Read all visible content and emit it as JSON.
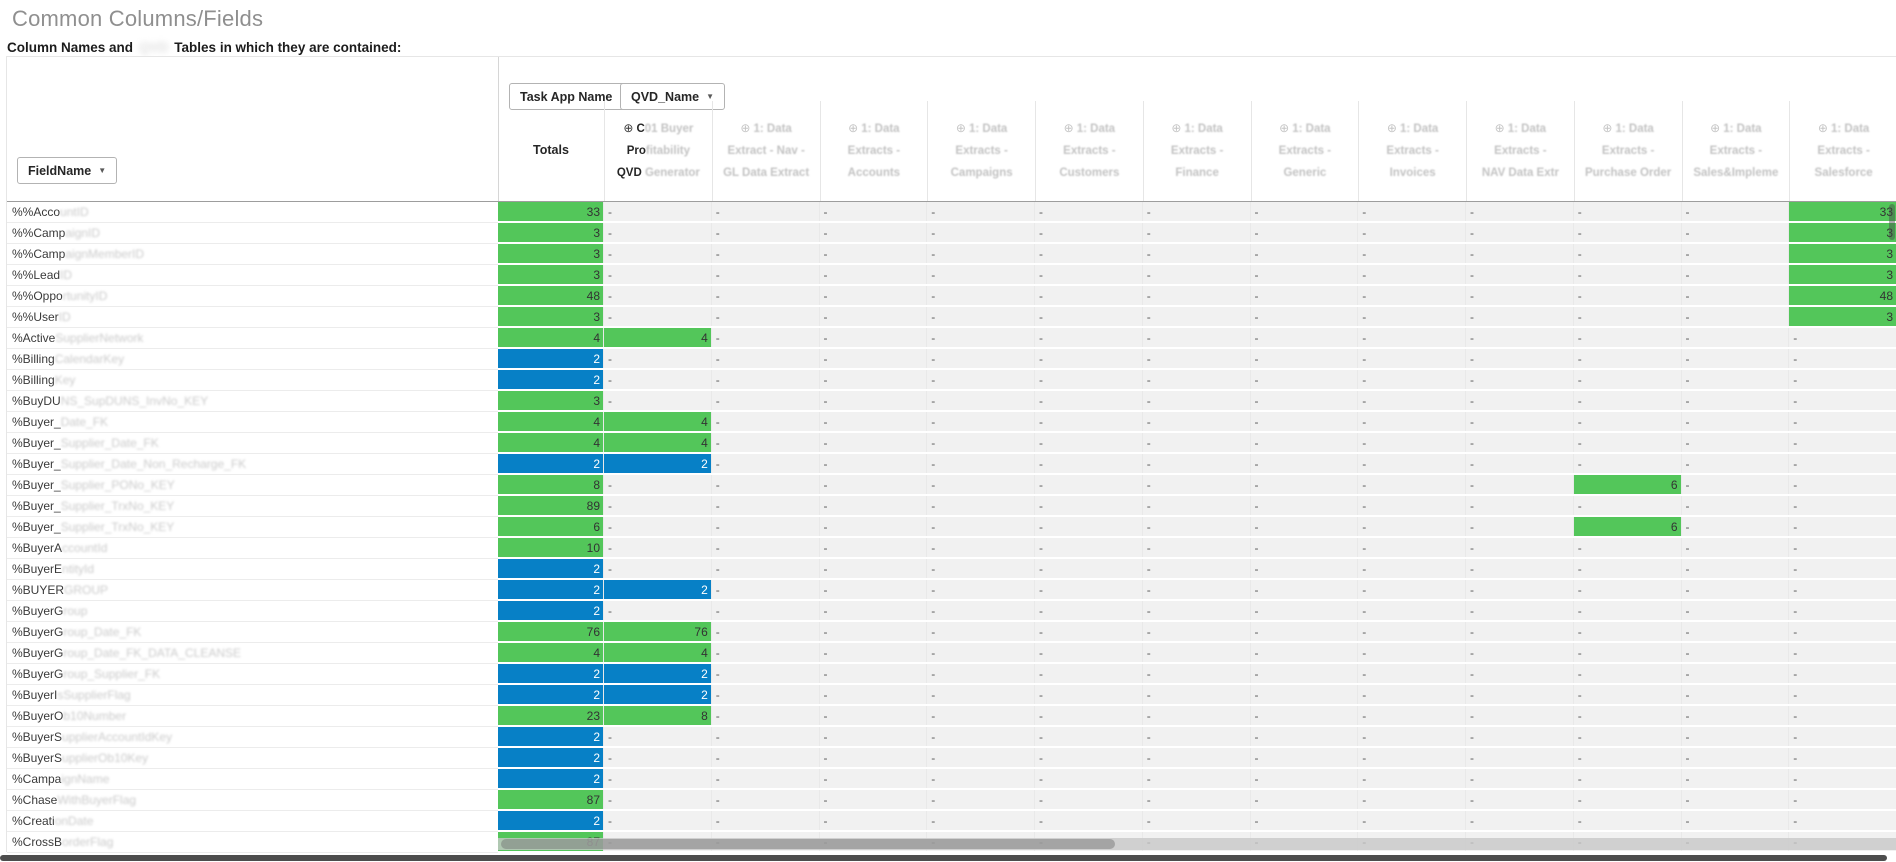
{
  "page": {
    "title": "Common Columns/Fields",
    "subtitle_prefix": "Column Names and",
    "subtitle_redacted": "QVD",
    "subtitle_suffix": "Tables in which they are contained:"
  },
  "toolbar": {
    "column_dim_button": "Task App Name",
    "column_dim2_button": "QVD_Name",
    "row_dim_button": "FieldName",
    "dropdown_arrow": "▼"
  },
  "colors": {
    "green": "#53c65a",
    "blue": "#0780c6"
  },
  "table": {
    "totals_label": "Totals",
    "expand_icon": "⊕",
    "empty_value": "-",
    "columns": [
      {
        "icon_clear": true,
        "lines": [
          [
            [
              "C",
              false
            ],
            [
              "01 Buyer",
              true
            ]
          ],
          [
            [
              "Pro",
              false
            ],
            [
              "fitability",
              true
            ]
          ],
          [
            [
              "QVD",
              false
            ],
            [
              " Generator",
              true
            ]
          ]
        ]
      },
      {
        "icon_clear": false,
        "lines": [
          [
            [
              "1: Data",
              true
            ]
          ],
          [
            [
              "Extract - Nav -",
              true
            ]
          ],
          [
            [
              "GL Data Extract",
              true
            ]
          ]
        ]
      },
      {
        "icon_clear": false,
        "lines": [
          [
            [
              "1: Data",
              true
            ]
          ],
          [
            [
              "Extracts -",
              true
            ]
          ],
          [
            [
              "Accounts",
              true
            ]
          ]
        ]
      },
      {
        "icon_clear": false,
        "lines": [
          [
            [
              "1: Data",
              true
            ]
          ],
          [
            [
              "Extracts -",
              true
            ]
          ],
          [
            [
              "Campaigns",
              true
            ]
          ]
        ]
      },
      {
        "icon_clear": false,
        "lines": [
          [
            [
              "1: Data",
              true
            ]
          ],
          [
            [
              "Extracts -",
              true
            ]
          ],
          [
            [
              "Customers",
              true
            ]
          ]
        ]
      },
      {
        "icon_clear": false,
        "lines": [
          [
            [
              "1: Data",
              true
            ]
          ],
          [
            [
              "Extracts -",
              true
            ]
          ],
          [
            [
              "Finance",
              true
            ]
          ]
        ]
      },
      {
        "icon_clear": false,
        "lines": [
          [
            [
              "1: Data",
              true
            ]
          ],
          [
            [
              "Extracts -",
              true
            ]
          ],
          [
            [
              "Generic",
              true
            ]
          ]
        ]
      },
      {
        "icon_clear": false,
        "lines": [
          [
            [
              "1: Data",
              true
            ]
          ],
          [
            [
              "Extracts -",
              true
            ]
          ],
          [
            [
              "Invoices",
              true
            ]
          ]
        ]
      },
      {
        "icon_clear": false,
        "lines": [
          [
            [
              "1: Data",
              true
            ]
          ],
          [
            [
              "Extracts -",
              true
            ]
          ],
          [
            [
              "NAV Data Extr",
              true
            ]
          ]
        ]
      },
      {
        "icon_clear": false,
        "lines": [
          [
            [
              "1: Data",
              true
            ]
          ],
          [
            [
              "Extracts -",
              true
            ]
          ],
          [
            [
              "Purchase Order",
              true
            ]
          ]
        ]
      },
      {
        "icon_clear": false,
        "lines": [
          [
            [
              "1: Data",
              true
            ]
          ],
          [
            [
              "Extracts -",
              true
            ]
          ],
          [
            [
              "Sales&Impleme",
              true
            ]
          ]
        ]
      },
      {
        "icon_clear": false,
        "lines": [
          [
            [
              "1: Data",
              true
            ]
          ],
          [
            [
              "Extracts -",
              true
            ]
          ],
          [
            [
              "Salesforce",
              true
            ]
          ]
        ]
      }
    ],
    "rows": [
      {
        "label_clear": "%%Acco",
        "label_blur": "untID",
        "total": {
          "v": 33,
          "c": "g"
        },
        "cells": {
          "12": {
            "v": 33,
            "c": "g"
          }
        }
      },
      {
        "label_clear": "%%Camp",
        "label_blur": "aignID",
        "total": {
          "v": 3,
          "c": "g"
        },
        "cells": {
          "12": {
            "v": 3,
            "c": "g"
          }
        }
      },
      {
        "label_clear": "%%Camp",
        "label_blur": "aignMemberID",
        "total": {
          "v": 3,
          "c": "g"
        },
        "cells": {
          "12": {
            "v": 3,
            "c": "g"
          }
        }
      },
      {
        "label_clear": "%%Lead",
        "label_blur": "ID",
        "total": {
          "v": 3,
          "c": "g"
        },
        "cells": {
          "12": {
            "v": 3,
            "c": "g"
          }
        }
      },
      {
        "label_clear": "%%Oppo",
        "label_blur": "rtunityID",
        "total": {
          "v": 48,
          "c": "g"
        },
        "cells": {
          "12": {
            "v": 48,
            "c": "g"
          }
        }
      },
      {
        "label_clear": "%%User",
        "label_blur": "ID",
        "total": {
          "v": 3,
          "c": "g"
        },
        "cells": {
          "12": {
            "v": 3,
            "c": "g"
          }
        }
      },
      {
        "label_clear": "%Active",
        "label_blur": "SupplierNetwork",
        "total": {
          "v": 4,
          "c": "g"
        },
        "cells": {
          "1": {
            "v": 4,
            "c": "g"
          }
        }
      },
      {
        "label_clear": "%Billing",
        "label_blur": "CalendarKey",
        "total": {
          "v": 2,
          "c": "b"
        },
        "cells": {}
      },
      {
        "label_clear": "%Billing",
        "label_blur": "Key",
        "total": {
          "v": 2,
          "c": "b"
        },
        "cells": {}
      },
      {
        "label_clear": "%BuyDU",
        "label_blur": "NS_SupDUNS_InvNo_KEY",
        "total": {
          "v": 3,
          "c": "g"
        },
        "cells": {}
      },
      {
        "label_clear": "%Buyer_",
        "label_blur": "Date_FK",
        "total": {
          "v": 4,
          "c": "g"
        },
        "cells": {
          "1": {
            "v": 4,
            "c": "g"
          }
        }
      },
      {
        "label_clear": "%Buyer_",
        "label_blur": "Supplier_Date_FK",
        "total": {
          "v": 4,
          "c": "g"
        },
        "cells": {
          "1": {
            "v": 4,
            "c": "g"
          }
        }
      },
      {
        "label_clear": "%Buyer_",
        "label_blur": "Supplier_Date_Non_Recharge_FK",
        "total": {
          "v": 2,
          "c": "b"
        },
        "cells": {
          "1": {
            "v": 2,
            "c": "b"
          }
        }
      },
      {
        "label_clear": "%Buyer_",
        "label_blur": "Supplier_PONo_KEY",
        "total": {
          "v": 8,
          "c": "g"
        },
        "cells": {
          "10": {
            "v": 6,
            "c": "g"
          }
        }
      },
      {
        "label_clear": "%Buyer_",
        "label_blur": "Supplier_TrxNo_KEY",
        "total": {
          "v": 89,
          "c": "g"
        },
        "cells": {}
      },
      {
        "label_clear": "%Buyer_",
        "label_blur": "Supplier_TrxNo_KEY",
        "total": {
          "v": 6,
          "c": "g"
        },
        "cells": {
          "10": {
            "v": 6,
            "c": "g"
          }
        }
      },
      {
        "label_clear": "%BuyerA",
        "label_blur": "ccountId",
        "total": {
          "v": 10,
          "c": "g"
        },
        "cells": {}
      },
      {
        "label_clear": "%BuyerE",
        "label_blur": "ntityId",
        "total": {
          "v": 2,
          "c": "b"
        },
        "cells": {}
      },
      {
        "label_clear": "%BUYER",
        "label_blur": "GROUP",
        "total": {
          "v": 2,
          "c": "b"
        },
        "cells": {
          "1": {
            "v": 2,
            "c": "b"
          }
        }
      },
      {
        "label_clear": "%BuyerG",
        "label_blur": "roup",
        "total": {
          "v": 2,
          "c": "b"
        },
        "cells": {}
      },
      {
        "label_clear": "%BuyerG",
        "label_blur": "roup_Date_FK",
        "total": {
          "v": 76,
          "c": "g"
        },
        "cells": {
          "1": {
            "v": 76,
            "c": "g"
          }
        }
      },
      {
        "label_clear": "%BuyerG",
        "label_blur": "roup_Date_FK_DATA_CLEANSE",
        "total": {
          "v": 4,
          "c": "g"
        },
        "cells": {
          "1": {
            "v": 4,
            "c": "g"
          }
        }
      },
      {
        "label_clear": "%BuyerG",
        "label_blur": "roup_Supplier_FK",
        "total": {
          "v": 2,
          "c": "b"
        },
        "cells": {
          "1": {
            "v": 2,
            "c": "b"
          }
        }
      },
      {
        "label_clear": "%BuyerI",
        "label_blur": "sSupplierFlag",
        "total": {
          "v": 2,
          "c": "b"
        },
        "cells": {
          "1": {
            "v": 2,
            "c": "b"
          }
        }
      },
      {
        "label_clear": "%BuyerO",
        "label_blur": "b10Number",
        "total": {
          "v": 23,
          "c": "g"
        },
        "cells": {
          "1": {
            "v": 8,
            "c": "g"
          }
        }
      },
      {
        "label_clear": "%BuyerS",
        "label_blur": "upplierAccountIdKey",
        "total": {
          "v": 2,
          "c": "b"
        },
        "cells": {}
      },
      {
        "label_clear": "%BuyerS",
        "label_blur": "upplierOb10Key",
        "total": {
          "v": 2,
          "c": "b"
        },
        "cells": {}
      },
      {
        "label_clear": "%Campa",
        "label_blur": "ignName",
        "total": {
          "v": 2,
          "c": "b"
        },
        "cells": {}
      },
      {
        "label_clear": "%Chase",
        "label_blur": "WithBuyerFlag",
        "total": {
          "v": 87,
          "c": "g"
        },
        "cells": {}
      },
      {
        "label_clear": "%Creati",
        "label_blur": "onDate",
        "total": {
          "v": 2,
          "c": "b"
        },
        "cells": {}
      },
      {
        "label_clear": "%CrossB",
        "label_blur": "orderFlag",
        "total": {
          "v": 87,
          "c": "g"
        },
        "cells": {}
      }
    ]
  }
}
